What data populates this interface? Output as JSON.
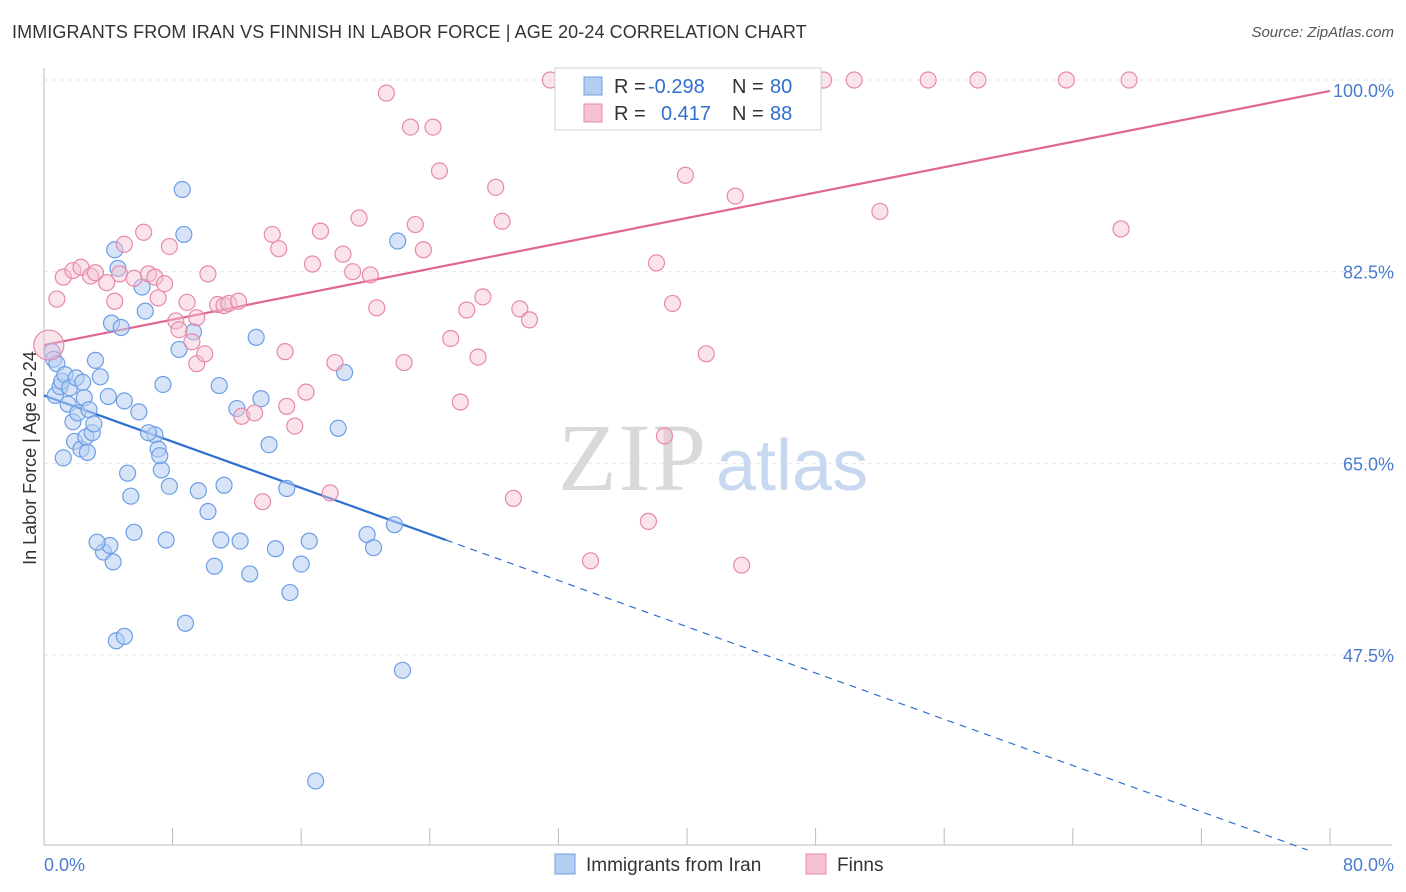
{
  "header": {
    "title": "IMMIGRANTS FROM IRAN VS FINNISH IN LABOR FORCE | AGE 20-24 CORRELATION CHART",
    "source": "Source: ZipAtlas.com"
  },
  "colors": {
    "blue": "#6d9ee6",
    "blue_fill": "#b6cdf2",
    "blue_line": "#2f6fd0",
    "pink": "#e889a9",
    "pink_fill": "#f5c2d3",
    "pink_line": "#e06690",
    "tick": "#4a7bd0",
    "grid": "#e6e6e6"
  },
  "watermark": {
    "zip": "ZIP",
    "atlas": "atlas"
  },
  "legend": {
    "rows": [
      {
        "r_label": "R = ",
        "r_value": "-0.298",
        "n_label": "N = ",
        "n_value": "80"
      },
      {
        "r_label": "R = ",
        "r_value": "0.417",
        "n_label": "N = ",
        "n_value": "88"
      }
    ]
  },
  "chart_data": {
    "type": "scatter",
    "title": "IMMIGRANTS FROM IRAN VS FINNISH IN LABOR FORCE | AGE 20-24 CORRELATION CHART",
    "ylabel": "In Labor Force | Age 20-24",
    "xlabel": "",
    "xlim": [
      0,
      80
    ],
    "ylim": [
      28,
      102
    ],
    "x_ticks": [
      "0.0%",
      "80.0%"
    ],
    "y_ticks": [
      {
        "value": 100.0,
        "label": "100.0%"
      },
      {
        "value": 82.5,
        "label": "82.5%"
      },
      {
        "value": 65.0,
        "label": "65.0%"
      },
      {
        "value": 47.5,
        "label": "47.5%"
      }
    ],
    "grid": true,
    "legend_position": "top-center",
    "series": [
      {
        "name": "Immigrants from Iran",
        "R": -0.298,
        "N": 80,
        "trend": {
          "x0": 0.0,
          "y0": 71.2,
          "x1": 25.0,
          "y1": 58.0,
          "dash_x1": 78.6
        },
        "points": [
          [
            0.5,
            75.2
          ],
          [
            0.6,
            74.5
          ],
          [
            0.8,
            74.1
          ],
          [
            0.7,
            71.2
          ],
          [
            1.0,
            72.0
          ],
          [
            1.1,
            72.5
          ],
          [
            1.3,
            73.1
          ],
          [
            1.5,
            70.4
          ],
          [
            1.6,
            71.9
          ],
          [
            1.8,
            68.8
          ],
          [
            1.9,
            67.0
          ],
          [
            2.0,
            72.8
          ],
          [
            2.1,
            69.6
          ],
          [
            2.3,
            66.3
          ],
          [
            2.4,
            72.4
          ],
          [
            2.5,
            71.0
          ],
          [
            2.6,
            67.4
          ],
          [
            2.8,
            69.9
          ],
          [
            3.0,
            67.8
          ],
          [
            3.2,
            74.4
          ],
          [
            3.5,
            72.9
          ],
          [
            4.0,
            71.1
          ],
          [
            4.2,
            77.8
          ],
          [
            4.4,
            84.5
          ],
          [
            4.6,
            82.8
          ],
          [
            4.8,
            77.4
          ],
          [
            5.0,
            70.7
          ],
          [
            5.2,
            64.1
          ],
          [
            5.4,
            62.0
          ],
          [
            5.6,
            58.7
          ],
          [
            5.9,
            69.7
          ],
          [
            6.1,
            81.1
          ],
          [
            6.3,
            78.9
          ],
          [
            6.9,
            67.6
          ],
          [
            7.1,
            66.3
          ],
          [
            7.4,
            72.2
          ],
          [
            7.6,
            58.0
          ],
          [
            7.3,
            64.4
          ],
          [
            7.2,
            65.7
          ],
          [
            7.8,
            62.9
          ],
          [
            8.4,
            75.4
          ],
          [
            8.7,
            85.9
          ],
          [
            8.6,
            90.0
          ],
          [
            9.3,
            77.0
          ],
          [
            8.8,
            50.4
          ],
          [
            10.2,
            60.6
          ],
          [
            10.6,
            55.6
          ],
          [
            10.9,
            72.1
          ],
          [
            11.0,
            58.0
          ],
          [
            11.2,
            63.0
          ],
          [
            12.0,
            70.0
          ],
          [
            12.2,
            57.9
          ],
          [
            12.8,
            54.9
          ],
          [
            13.2,
            76.5
          ],
          [
            13.5,
            70.9
          ],
          [
            14.0,
            66.7
          ],
          [
            14.4,
            57.2
          ],
          [
            15.1,
            62.7
          ],
          [
            15.3,
            53.2
          ],
          [
            16.0,
            55.8
          ],
          [
            16.5,
            57.9
          ],
          [
            16.9,
            36.0
          ],
          [
            18.3,
            68.2
          ],
          [
            18.7,
            73.3
          ],
          [
            20.1,
            58.5
          ],
          [
            20.5,
            57.3
          ],
          [
            21.8,
            59.4
          ],
          [
            22.0,
            85.3
          ],
          [
            22.3,
            46.1
          ],
          [
            3.7,
            56.9
          ],
          [
            4.1,
            57.5
          ],
          [
            3.3,
            57.8
          ],
          [
            4.3,
            56.0
          ],
          [
            4.5,
            48.8
          ],
          [
            5.0,
            49.2
          ],
          [
            1.2,
            65.5
          ],
          [
            2.7,
            66.0
          ],
          [
            3.1,
            68.6
          ],
          [
            6.5,
            67.8
          ],
          [
            9.6,
            62.5
          ]
        ]
      },
      {
        "name": "Finns",
        "R": 0.417,
        "N": 88,
        "trend": {
          "x0": 0.0,
          "y0": 75.8,
          "x1": 80.0,
          "y1": 99.0
        },
        "points": [
          [
            0.3,
            75.8
          ],
          [
            0.8,
            80.0
          ],
          [
            1.2,
            82.0
          ],
          [
            1.8,
            82.6
          ],
          [
            2.3,
            82.9
          ],
          [
            2.9,
            82.1
          ],
          [
            3.2,
            82.4
          ],
          [
            3.9,
            81.5
          ],
          [
            4.4,
            79.8
          ],
          [
            4.7,
            82.3
          ],
          [
            5.0,
            85.0
          ],
          [
            5.6,
            81.9
          ],
          [
            6.2,
            86.1
          ],
          [
            6.5,
            82.3
          ],
          [
            6.9,
            82.0
          ],
          [
            7.1,
            80.1
          ],
          [
            7.5,
            81.4
          ],
          [
            7.8,
            84.8
          ],
          [
            8.2,
            78.0
          ],
          [
            8.4,
            77.2
          ],
          [
            8.9,
            79.7
          ],
          [
            9.2,
            76.1
          ],
          [
            9.5,
            74.1
          ],
          [
            10.2,
            82.3
          ],
          [
            10.8,
            79.5
          ],
          [
            11.2,
            79.4
          ],
          [
            11.5,
            79.6
          ],
          [
            12.1,
            79.8
          ],
          [
            12.3,
            69.3
          ],
          [
            13.1,
            69.6
          ],
          [
            13.6,
            61.5
          ],
          [
            14.2,
            85.9
          ],
          [
            14.6,
            84.6
          ],
          [
            15.1,
            70.2
          ],
          [
            15.6,
            68.4
          ],
          [
            16.3,
            71.5
          ],
          [
            16.7,
            83.2
          ],
          [
            17.2,
            86.2
          ],
          [
            17.8,
            62.3
          ],
          [
            18.1,
            74.2
          ],
          [
            18.6,
            84.1
          ],
          [
            19.2,
            82.5
          ],
          [
            19.6,
            87.4
          ],
          [
            20.3,
            82.2
          ],
          [
            20.7,
            79.2
          ],
          [
            21.3,
            98.8
          ],
          [
            22.4,
            74.2
          ],
          [
            22.8,
            95.7
          ],
          [
            23.1,
            86.8
          ],
          [
            23.6,
            84.5
          ],
          [
            24.2,
            95.7
          ],
          [
            24.6,
            91.7
          ],
          [
            25.3,
            76.4
          ],
          [
            25.9,
            70.6
          ],
          [
            26.3,
            79.0
          ],
          [
            27.0,
            74.7
          ],
          [
            27.3,
            80.2
          ],
          [
            28.1,
            90.2
          ],
          [
            28.5,
            87.1
          ],
          [
            29.2,
            61.8
          ],
          [
            29.6,
            79.1
          ],
          [
            30.2,
            78.1
          ],
          [
            31.5,
            100.0
          ],
          [
            33.0,
            100.0
          ],
          [
            34.0,
            56.1
          ],
          [
            35.0,
            100.0
          ],
          [
            36.0,
            100.0
          ],
          [
            37.2,
            100.0
          ],
          [
            37.6,
            59.7
          ],
          [
            38.1,
            83.3
          ],
          [
            38.6,
            67.5
          ],
          [
            39.1,
            79.6
          ],
          [
            39.9,
            91.3
          ],
          [
            40.3,
            100.0
          ],
          [
            41.2,
            75.0
          ],
          [
            43.0,
            89.4
          ],
          [
            43.4,
            55.7
          ],
          [
            48.5,
            100.0
          ],
          [
            50.4,
            100.0
          ],
          [
            52.0,
            88.0
          ],
          [
            55.0,
            100.0
          ],
          [
            58.1,
            100.0
          ],
          [
            63.6,
            100.0
          ],
          [
            67.0,
            86.4
          ],
          [
            67.5,
            100.0
          ],
          [
            10.0,
            75.0
          ],
          [
            15.0,
            75.2
          ],
          [
            9.5,
            78.3
          ]
        ]
      }
    ]
  },
  "bottom_legend": [
    {
      "label": "Immigrants from Iran"
    },
    {
      "label": "Finns"
    }
  ]
}
